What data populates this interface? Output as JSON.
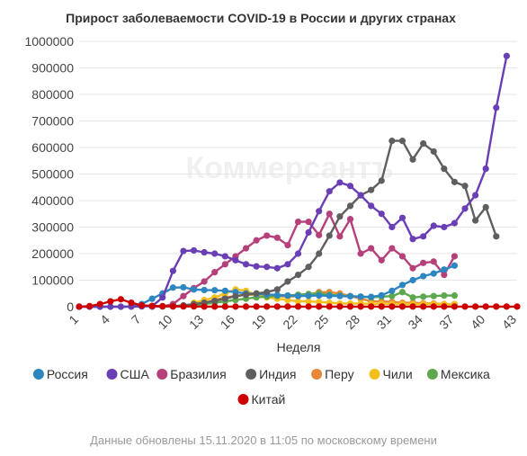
{
  "chart_data": {
    "type": "line",
    "title": "Прирост заболеваемости COVID-19 в России и других странах",
    "xlabel": "Неделя",
    "ylabel": "",
    "ylim": [
      0,
      1000000
    ],
    "yticks": [
      "0",
      "100000",
      "200000",
      "300000",
      "400000",
      "500000",
      "600000",
      "700000",
      "800000",
      "900000",
      "1000000"
    ],
    "xticks": [
      "1",
      "4",
      "7",
      "10",
      "13",
      "16",
      "19",
      "22",
      "25",
      "28",
      "31",
      "34",
      "37",
      "40",
      "43"
    ],
    "grid": true,
    "legend_position": "bottom",
    "watermark": "Коммерсантъ",
    "footnote": "Данные обновлены 15.11.2020 в 11:05 по московскому времени",
    "series": [
      {
        "name": "Россия",
        "color": "#2e86c1",
        "x": [
          1,
          2,
          3,
          4,
          5,
          6,
          7,
          8,
          9,
          10,
          11,
          12,
          13,
          14,
          15,
          16,
          17,
          18,
          19,
          20,
          21,
          22,
          23,
          24,
          25,
          26,
          27,
          28,
          29,
          30,
          31,
          32,
          33,
          34,
          35,
          36,
          37
        ],
        "values": [
          0,
          0,
          0,
          0,
          0,
          1000,
          10000,
          30000,
          50000,
          72000,
          73000,
          65000,
          63000,
          62000,
          60000,
          55000,
          50000,
          48000,
          46000,
          44000,
          42000,
          40000,
          41000,
          42000,
          41000,
          40000,
          39000,
          38000,
          37000,
          43000,
          60000,
          82000,
          100000,
          115000,
          125000,
          140000,
          155000
        ]
      },
      {
        "name": "США",
        "color": "#6a3fb5",
        "x": [
          1,
          2,
          3,
          4,
          5,
          6,
          7,
          8,
          9,
          10,
          11,
          12,
          13,
          14,
          15,
          16,
          17,
          18,
          19,
          20,
          21,
          22,
          23,
          24,
          25,
          26,
          27,
          28,
          29,
          30,
          31,
          32,
          33,
          34,
          35,
          36,
          37,
          38,
          39,
          40,
          41,
          42
        ],
        "values": [
          0,
          0,
          0,
          0,
          0,
          0,
          1000,
          2000,
          35000,
          135000,
          210000,
          212000,
          205000,
          200000,
          190000,
          175000,
          160000,
          152000,
          150000,
          145000,
          160000,
          200000,
          280000,
          360000,
          435000,
          468000,
          455000,
          420000,
          380000,
          350000,
          300000,
          335000,
          255000,
          265000,
          305000,
          300000,
          315000,
          370000,
          420000,
          520000,
          750000,
          945000
        ]
      },
      {
        "name": "Бразилия",
        "color": "#b5407a",
        "x": [
          8,
          9,
          10,
          11,
          12,
          13,
          14,
          15,
          16,
          17,
          18,
          19,
          20,
          21,
          22,
          23,
          24,
          25,
          26,
          27,
          28,
          29,
          30,
          31,
          32,
          33,
          34,
          35,
          36,
          37
        ],
        "values": [
          0,
          1000,
          10000,
          40000,
          70000,
          95000,
          130000,
          160000,
          190000,
          220000,
          250000,
          268000,
          260000,
          232000,
          320000,
          320000,
          270000,
          350000,
          265000,
          330000,
          200000,
          220000,
          175000,
          220000,
          190000,
          145000,
          165000,
          170000,
          120000,
          190000
        ]
      },
      {
        "name": "Индия",
        "color": "#5f5f5f",
        "x": [
          9,
          10,
          11,
          12,
          13,
          14,
          15,
          16,
          17,
          18,
          19,
          20,
          21,
          22,
          23,
          24,
          25,
          26,
          27,
          28,
          29,
          30,
          31,
          32,
          33,
          34,
          35,
          36,
          37,
          38,
          39,
          40,
          41
        ],
        "values": [
          1000,
          2000,
          5000,
          10000,
          15000,
          22000,
          30000,
          40000,
          45000,
          50000,
          55000,
          65000,
          95000,
          120000,
          150000,
          200000,
          268000,
          340000,
          380000,
          420000,
          440000,
          475000,
          625000,
          625000,
          555000,
          615000,
          585000,
          520000,
          470000,
          455000,
          325000,
          375000,
          265000
        ]
      },
      {
        "name": "Перу",
        "color": "#e6873a",
        "x": [
          12,
          13,
          14,
          15,
          16,
          17,
          18,
          19,
          20,
          21,
          22,
          23,
          24,
          25,
          26,
          27,
          28,
          29,
          30,
          31,
          32,
          33,
          34,
          35,
          36,
          37
        ],
        "values": [
          5000,
          15000,
          25000,
          35000,
          40000,
          45000,
          45000,
          42000,
          40000,
          38000,
          40000,
          45000,
          55000,
          55000,
          50000,
          40000,
          30000,
          20000,
          20000,
          18000,
          15000,
          15000,
          13000,
          12000,
          10000,
          10000
        ]
      },
      {
        "name": "Чили",
        "color": "#f2c01e",
        "x": [
          12,
          13,
          14,
          15,
          16,
          17,
          18,
          19,
          20,
          21,
          22,
          23,
          24,
          25,
          26,
          27,
          28,
          29,
          30,
          31,
          32,
          33,
          34,
          35,
          36,
          37
        ],
        "values": [
          15000,
          25000,
          35000,
          50000,
          65000,
          60000,
          45000,
          35000,
          30000,
          25000,
          20000,
          20000,
          18000,
          15000,
          12000,
          12000,
          12000,
          11000,
          11000,
          10000,
          10000,
          10000,
          10000,
          10000,
          9000,
          9000
        ]
      },
      {
        "name": "Мексика",
        "color": "#5da84f",
        "x": [
          10,
          11,
          12,
          13,
          14,
          15,
          16,
          17,
          18,
          19,
          20,
          21,
          22,
          23,
          24,
          25,
          26,
          27,
          28,
          29,
          30,
          31,
          32,
          33,
          34,
          35,
          36,
          37
        ],
        "values": [
          1000,
          2000,
          5000,
          10000,
          15000,
          20000,
          25000,
          30000,
          35000,
          38000,
          40000,
          42000,
          45000,
          48000,
          50000,
          45000,
          42000,
          40000,
          38000,
          35000,
          38000,
          40000,
          55000,
          35000,
          38000,
          40000,
          42000,
          42000
        ]
      },
      {
        "name": "Китай",
        "color": "#cc0000",
        "x": [
          1,
          2,
          3,
          4,
          5,
          6,
          7,
          8,
          9,
          10,
          11,
          12,
          13,
          14,
          15,
          16,
          17,
          18,
          19,
          20,
          21,
          22,
          23,
          24,
          25,
          26,
          27,
          28,
          29,
          30,
          31,
          32,
          33,
          34,
          35,
          36,
          37,
          38,
          39,
          40,
          41,
          42,
          43
        ],
        "values": [
          0,
          2000,
          10000,
          20000,
          28000,
          15000,
          5000,
          3000,
          2000,
          1000,
          1000,
          1000,
          500,
          500,
          500,
          500,
          500,
          500,
          500,
          500,
          500,
          500,
          500,
          500,
          500,
          500,
          500,
          500,
          500,
          500,
          500,
          500,
          500,
          500,
          500,
          500,
          500,
          500,
          500,
          500,
          500,
          500,
          500
        ]
      }
    ]
  }
}
